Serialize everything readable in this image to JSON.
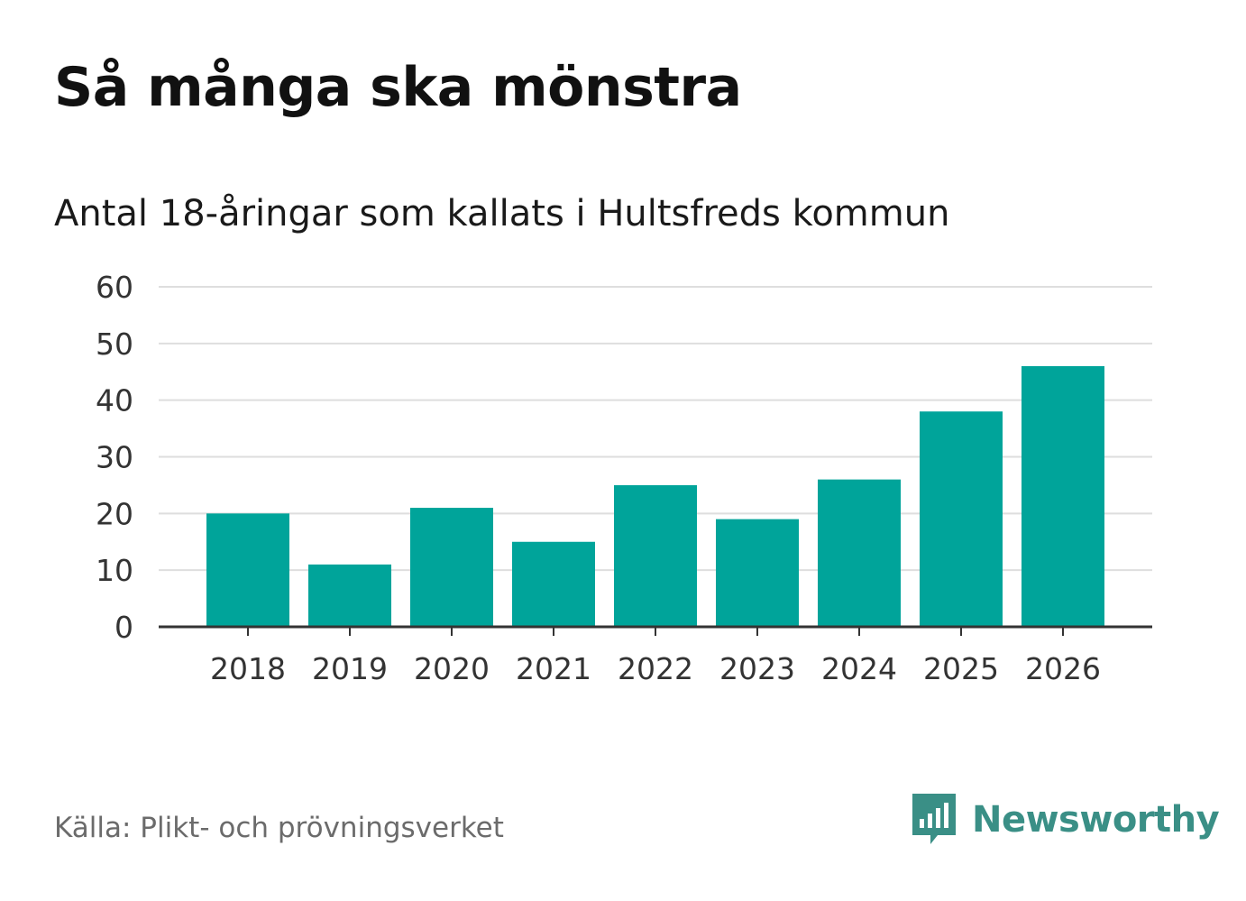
{
  "chart_data": {
    "type": "bar",
    "title": "Så många ska mönstra",
    "subtitle": "Antal 18-åringar som kallats i Hultsfreds kommun",
    "categories": [
      "2018",
      "2019",
      "2020",
      "2021",
      "2022",
      "2023",
      "2024",
      "2025",
      "2026"
    ],
    "values": [
      20,
      11,
      21,
      15,
      25,
      19,
      26,
      38,
      46
    ],
    "xlabel": "",
    "ylabel": "",
    "ylim": [
      0,
      60
    ],
    "yticks": [
      "0",
      "10",
      "20",
      "30",
      "40",
      "50",
      "60"
    ],
    "grid": true,
    "colors": {
      "bar": "#00a49a",
      "grid": "#dedede",
      "axis": "#333333",
      "text": "#333333"
    }
  },
  "footer": {
    "source": "Källa: Plikt- och prövningsverket",
    "brand": "Newsworthy",
    "brand_icon": "newsworthy-logo-icon",
    "brand_color": "#3a8f86"
  }
}
